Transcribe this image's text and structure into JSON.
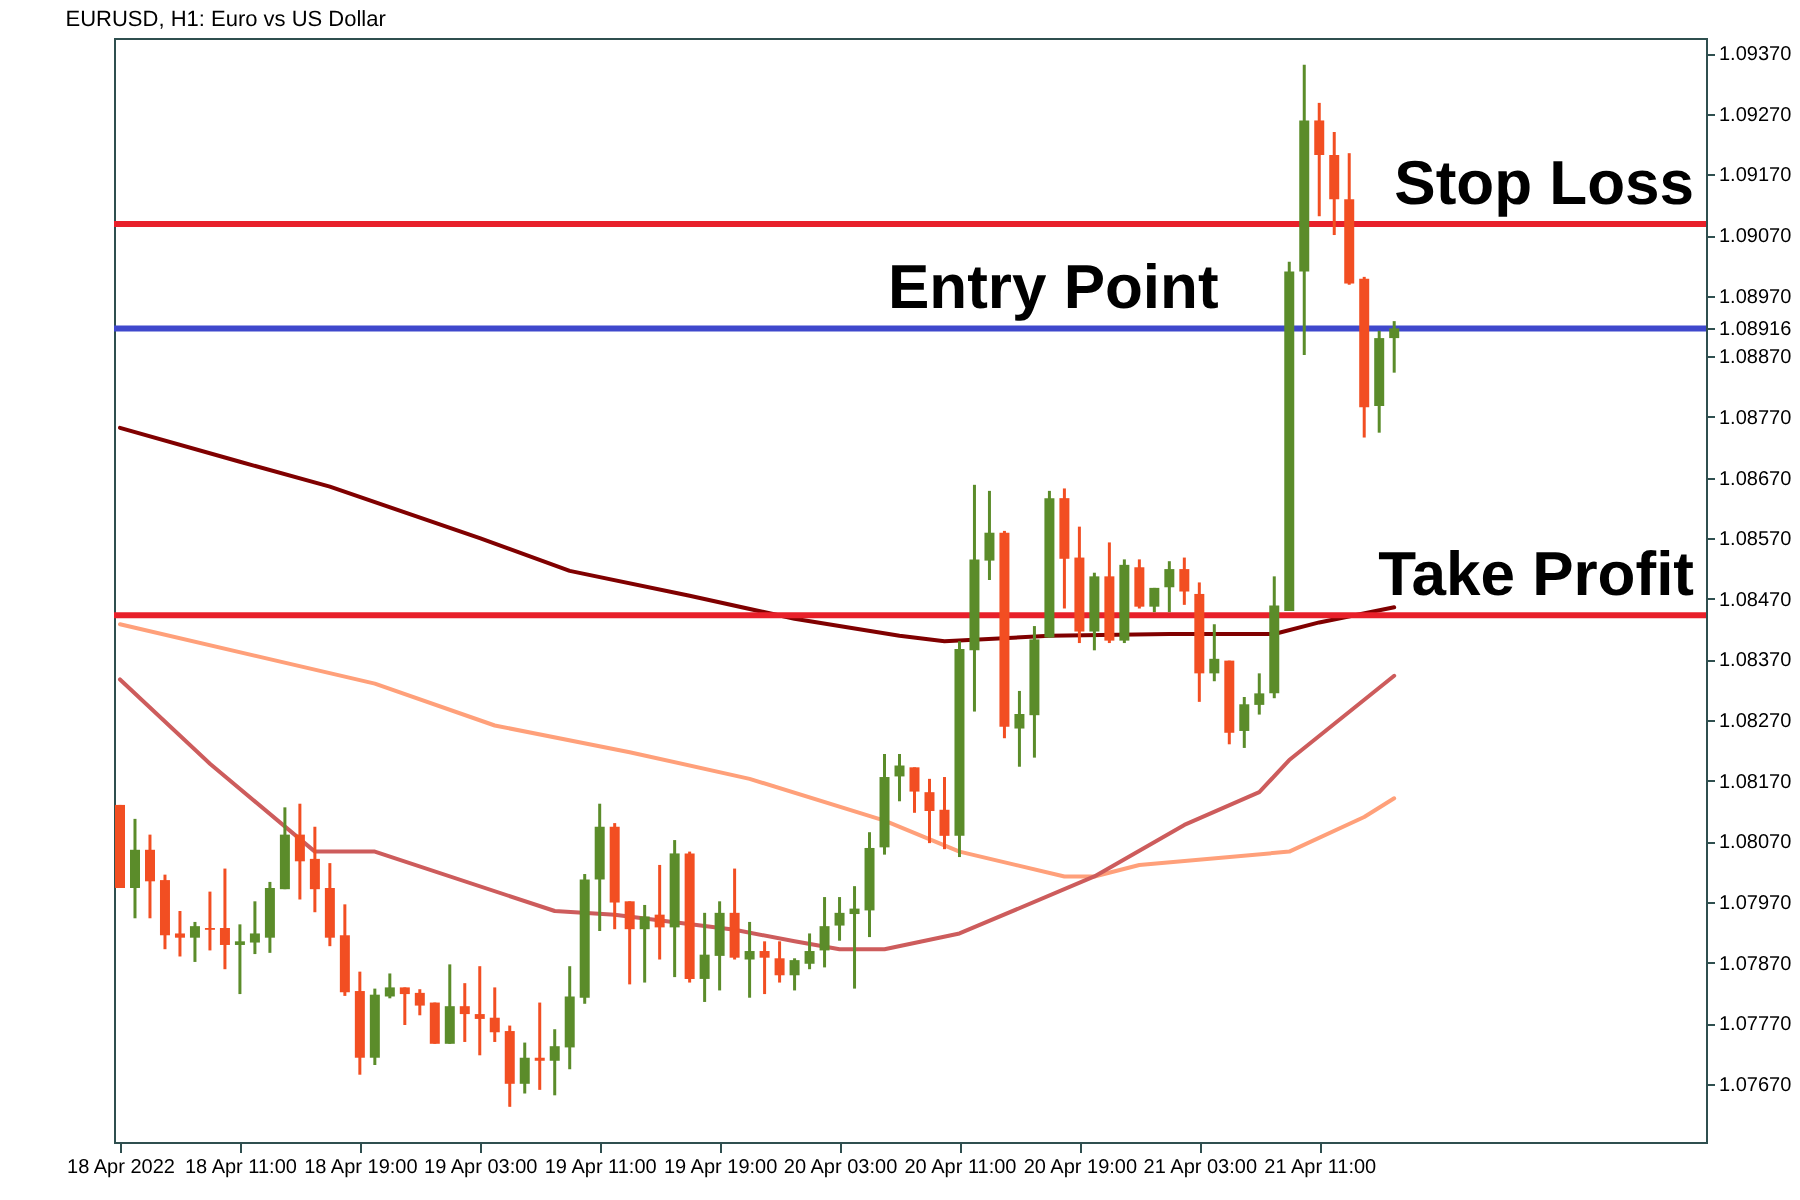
{
  "chart_data": {
    "type": "candlestick",
    "title": "EURUSD, H1:  Euro vs US Dollar",
    "x": [
      "2022-04-18T03:00",
      "2022-04-18T04:00",
      "2022-04-18T05:00",
      "2022-04-18T06:00",
      "2022-04-18T07:00",
      "2022-04-18T08:00",
      "2022-04-18T09:00",
      "2022-04-18T10:00",
      "2022-04-18T11:00",
      "2022-04-18T12:00",
      "2022-04-18T13:00",
      "2022-04-18T14:00",
      "2022-04-18T15:00",
      "2022-04-18T16:00",
      "2022-04-18T17:00",
      "2022-04-18T18:00",
      "2022-04-18T19:00",
      "2022-04-18T20:00",
      "2022-04-18T21:00",
      "2022-04-18T22:00",
      "2022-04-18T23:00",
      "2022-04-19T00:00",
      "2022-04-19T01:00",
      "2022-04-19T02:00",
      "2022-04-19T03:00",
      "2022-04-19T04:00",
      "2022-04-19T05:00",
      "2022-04-19T06:00",
      "2022-04-19T07:00",
      "2022-04-19T08:00",
      "2022-04-19T09:00",
      "2022-04-19T10:00",
      "2022-04-19T11:00",
      "2022-04-19T12:00",
      "2022-04-19T13:00",
      "2022-04-19T14:00",
      "2022-04-19T15:00",
      "2022-04-19T16:00",
      "2022-04-19T17:00",
      "2022-04-19T18:00",
      "2022-04-19T19:00",
      "2022-04-19T20:00",
      "2022-04-19T21:00",
      "2022-04-19T22:00",
      "2022-04-19T23:00",
      "2022-04-20T00:00",
      "2022-04-20T01:00",
      "2022-04-20T02:00",
      "2022-04-20T03:00",
      "2022-04-20T04:00",
      "2022-04-20T05:00",
      "2022-04-20T06:00",
      "2022-04-20T07:00",
      "2022-04-20T08:00",
      "2022-04-20T09:00",
      "2022-04-20T10:00",
      "2022-04-20T11:00",
      "2022-04-20T12:00",
      "2022-04-20T13:00",
      "2022-04-20T14:00",
      "2022-04-20T15:00",
      "2022-04-20T16:00",
      "2022-04-20T17:00",
      "2022-04-20T18:00",
      "2022-04-20T19:00",
      "2022-04-20T20:00",
      "2022-04-20T21:00",
      "2022-04-20T22:00",
      "2022-04-20T23:00",
      "2022-04-21T00:00",
      "2022-04-21T01:00",
      "2022-04-21T02:00",
      "2022-04-21T03:00",
      "2022-04-21T04:00",
      "2022-04-21T05:00",
      "2022-04-21T06:00",
      "2022-04-21T07:00",
      "2022-04-21T08:00",
      "2022-04-21T09:00",
      "2022-04-21T10:00",
      "2022-04-21T11:00",
      "2022-04-21T12:00",
      "2022-04-21T13:00",
      "2022-04-21T14:00",
      "2022-04-21T15:00",
      "2022-04-21T16:00"
    ],
    "ohlc": [
      [
        1.0813,
        1.0813,
        1.07993,
        1.07993
      ],
      [
        1.07993,
        1.08107,
        1.07943,
        1.08056
      ],
      [
        1.08056,
        1.08081,
        1.07943,
        1.08004
      ],
      [
        1.08006,
        1.08015,
        1.07892,
        1.07915
      ],
      [
        1.07918,
        1.07955,
        1.0788,
        1.07911
      ],
      [
        1.07911,
        1.07937,
        1.07871,
        1.0793
      ],
      [
        1.07927,
        1.07987,
        1.0789,
        1.07924
      ],
      [
        1.07927,
        1.08025,
        1.07859,
        1.07899
      ],
      [
        1.07899,
        1.07933,
        1.07818,
        1.07905
      ],
      [
        1.07903,
        1.07971,
        1.07884,
        1.07918
      ],
      [
        1.07911,
        1.08003,
        1.07886,
        1.07993
      ],
      [
        1.07991,
        1.08126,
        1.07991,
        1.08081
      ],
      [
        1.08081,
        1.08132,
        1.07974,
        1.08037
      ],
      [
        1.08041,
        1.08094,
        1.07953,
        1.07991
      ],
      [
        1.07993,
        1.08034,
        1.07897,
        1.07911
      ],
      [
        1.07915,
        1.07966,
        1.07815,
        1.07821
      ],
      [
        1.07823,
        1.07855,
        1.07685,
        1.07713
      ],
      [
        1.07713,
        1.07827,
        1.07701,
        1.07817
      ],
      [
        1.07814,
        1.07852,
        1.07811,
        1.07829
      ],
      [
        1.07829,
        1.07829,
        1.07767,
        1.07818
      ],
      [
        1.0782,
        1.07826,
        1.07783,
        1.07799
      ],
      [
        1.07804,
        1.07804,
        1.07736,
        1.07736
      ],
      [
        1.07736,
        1.07867,
        1.07736,
        1.07798
      ],
      [
        1.07798,
        1.07836,
        1.07739,
        1.07785
      ],
      [
        1.07785,
        1.07864,
        1.07717,
        1.07777
      ],
      [
        1.07779,
        1.07829,
        1.07739,
        1.07755
      ],
      [
        1.07757,
        1.07766,
        1.07632,
        1.0767
      ],
      [
        1.0767,
        1.07738,
        1.07654,
        1.07713
      ],
      [
        1.07713,
        1.07804,
        1.0766,
        1.07708
      ],
      [
        1.07708,
        1.0776,
        1.07651,
        1.07732
      ],
      [
        1.0773,
        1.07864,
        1.07694,
        1.07814
      ],
      [
        1.07812,
        1.08016,
        1.07802,
        1.08007
      ],
      [
        1.08007,
        1.08132,
        1.07922,
        1.08094
      ],
      [
        1.08094,
        1.081,
        1.07925,
        1.07969
      ],
      [
        1.07971,
        1.07971,
        1.07834,
        1.07925
      ],
      [
        1.07925,
        1.07965,
        1.07837,
        1.07946
      ],
      [
        1.07949,
        1.08031,
        1.07875,
        1.07928
      ],
      [
        1.07928,
        1.08072,
        1.07846,
        1.0805
      ],
      [
        1.0805,
        1.08053,
        1.07837,
        1.07843
      ],
      [
        1.07843,
        1.07952,
        1.07805,
        1.07883
      ],
      [
        1.07881,
        1.07971,
        1.07824,
        1.07952
      ],
      [
        1.07952,
        1.08025,
        1.07875,
        1.07878
      ],
      [
        1.07875,
        1.07937,
        1.07812,
        1.07889
      ],
      [
        1.07889,
        1.07905,
        1.07818,
        1.07878
      ],
      [
        1.07877,
        1.07905,
        1.07837,
        1.07849
      ],
      [
        1.07849,
        1.07877,
        1.07824,
        1.07874
      ],
      [
        1.07868,
        1.07918,
        1.07859,
        1.07889
      ],
      [
        1.0789,
        1.07978,
        1.07862,
        1.0793
      ],
      [
        1.07931,
        1.07978,
        1.07906,
        1.07952
      ],
      [
        1.0795,
        1.07996,
        1.07827,
        1.07959
      ],
      [
        1.07956,
        1.08085,
        1.07912,
        1.08059
      ],
      [
        1.0806,
        1.08214,
        1.08048,
        1.08176
      ],
      [
        1.08177,
        1.08214,
        1.08136,
        1.08195
      ],
      [
        1.08192,
        1.08192,
        1.08117,
        1.08152
      ],
      [
        1.08151,
        1.08173,
        1.08067,
        1.0812
      ],
      [
        1.08122,
        1.08176,
        1.08057,
        1.08079
      ],
      [
        1.08079,
        1.084,
        1.08044,
        1.08387
      ],
      [
        1.08385,
        1.08658,
        1.08284,
        1.08535
      ],
      [
        1.08533,
        1.08648,
        1.08501,
        1.08579
      ],
      [
        1.08579,
        1.08582,
        1.0824,
        1.08259
      ],
      [
        1.08256,
        1.08318,
        1.08193,
        1.0828
      ],
      [
        1.08278,
        1.08425,
        1.08208,
        1.08403
      ],
      [
        1.08406,
        1.08648,
        1.08406,
        1.08636
      ],
      [
        1.08636,
        1.08652,
        1.08454,
        1.08536
      ],
      [
        1.08538,
        1.08589,
        1.08397,
        1.08416
      ],
      [
        1.08416,
        1.08513,
        1.08385,
        1.08507
      ],
      [
        1.08507,
        1.08563,
        1.08397,
        1.08401
      ],
      [
        1.08401,
        1.08535,
        1.08397,
        1.08526
      ],
      [
        1.08522,
        1.08535,
        1.08454,
        1.08457
      ],
      [
        1.08457,
        1.08488,
        1.08448,
        1.08488
      ],
      [
        1.08489,
        1.08532,
        1.08448,
        1.08519
      ],
      [
        1.08519,
        1.08538,
        1.0846,
        1.08482
      ],
      [
        1.08478,
        1.08497,
        1.083,
        1.08347
      ],
      [
        1.08347,
        1.08428,
        1.08334,
        1.08371
      ],
      [
        1.08368,
        1.08368,
        1.0823,
        1.08249
      ],
      [
        1.08252,
        1.08308,
        1.08224,
        1.08296
      ],
      [
        1.08295,
        1.08347,
        1.08279,
        1.08314
      ],
      [
        1.08314,
        1.08507,
        1.08306,
        1.08459
      ],
      [
        1.0845,
        1.09026,
        1.0845,
        1.0901
      ],
      [
        1.0901,
        1.09351,
        1.08872,
        1.09259
      ],
      [
        1.09259,
        1.09288,
        1.09101,
        1.09202
      ],
      [
        1.09202,
        1.0924,
        1.0907,
        1.09129
      ],
      [
        1.09129,
        1.09205,
        1.08988,
        1.0899
      ],
      [
        1.08998,
        1.09001,
        1.08736,
        1.08786
      ],
      [
        1.08788,
        1.08912,
        1.08744,
        1.089
      ],
      [
        1.089,
        1.08928,
        1.08843,
        1.08916
      ]
    ],
    "colors": [
      "#f24e22",
      "#5b8c2a",
      "#f24e22",
      "#f24e22",
      "#f24e22",
      "#5b8c2a",
      "#f24e22",
      "#f24e22",
      "#5b8c2a",
      "#5b8c2a",
      "#5b8c2a",
      "#5b8c2a",
      "#f24e22",
      "#f24e22",
      "#f24e22",
      "#f24e22",
      "#f24e22",
      "#5b8c2a",
      "#5b8c2a",
      "#f24e22",
      "#f24e22",
      "#f24e22",
      "#5b8c2a",
      "#f24e22",
      "#f24e22",
      "#f24e22",
      "#f24e22",
      "#5b8c2a",
      "#f24e22",
      "#5b8c2a",
      "#5b8c2a",
      "#5b8c2a",
      "#5b8c2a",
      "#f24e22",
      "#f24e22",
      "#5b8c2a",
      "#f24e22",
      "#5b8c2a",
      "#f24e22",
      "#5b8c2a",
      "#5b8c2a",
      "#f24e22",
      "#5b8c2a",
      "#f24e22",
      "#f24e22",
      "#5b8c2a",
      "#5b8c2a",
      "#5b8c2a",
      "#5b8c2a",
      "#5b8c2a",
      "#5b8c2a",
      "#5b8c2a",
      "#5b8c2a",
      "#f24e22",
      "#f24e22",
      "#f24e22",
      "#5b8c2a",
      "#5b8c2a",
      "#5b8c2a",
      "#f24e22",
      "#5b8c2a",
      "#5b8c2a",
      "#5b8c2a",
      "#f24e22",
      "#f24e22",
      "#5b8c2a",
      "#f24e22",
      "#5b8c2a",
      "#f24e22",
      "#5b8c2a",
      "#5b8c2a",
      "#f24e22",
      "#f24e22",
      "#5b8c2a",
      "#f24e22",
      "#5b8c2a",
      "#5b8c2a",
      "#5b8c2a",
      "#5b8c2a",
      "#5b8c2a",
      "#f24e22",
      "#f24e22",
      "#f24e22",
      "#f24e22",
      "#5b8c2a",
      "#5b8c2a"
    ],
    "series": [
      {
        "type": "line",
        "color": "#800000",
        "x": [
          "2022-04-18T03:00",
          "2022-04-18T11:00",
          "2022-04-18T17:00",
          "2022-04-19T03:00",
          "2022-04-19T09:00",
          "2022-04-19T17:00",
          "2022-04-20T00:00",
          "2022-04-20T07:00",
          "2022-04-20T10:00",
          "2022-04-20T17:00",
          "2022-04-21T01:00",
          "2022-04-21T08:00",
          "2022-04-21T11:00",
          "2022-04-21T16:00"
        ],
        "values": [
          1.08752,
          1.08696,
          1.08655,
          1.0857,
          1.08516,
          1.08475,
          1.08437,
          1.08409,
          1.084,
          1.08409,
          1.08412,
          1.08412,
          1.08431,
          1.08456
        ]
      },
      {
        "type": "line",
        "color": "#ffa07a",
        "x": [
          "2022-04-18T03:00",
          "2022-04-18T20:00",
          "2022-04-19T04:00",
          "2022-04-19T13:00",
          "2022-04-19T21:00",
          "2022-04-20T06:00",
          "2022-04-20T11:00",
          "2022-04-20T18:00",
          "2022-04-20T20:00",
          "2022-04-20T23:00",
          "2022-04-21T09:00",
          "2022-04-21T14:00",
          "2022-04-21T16:00"
        ],
        "values": [
          1.08428,
          1.0833,
          1.08261,
          1.08217,
          1.08173,
          1.08104,
          1.08053,
          1.08012,
          1.08012,
          1.08031,
          1.08053,
          1.0811,
          1.08141
        ]
      },
      {
        "type": "line",
        "color": "#cd5c5c",
        "x": [
          "2022-04-18T03:00",
          "2022-04-18T09:00",
          "2022-04-18T16:00",
          "2022-04-18T20:00",
          "2022-04-19T08:00",
          "2022-04-19T12:00",
          "2022-04-19T20:00",
          "2022-04-20T00:00",
          "2022-04-20T03:00",
          "2022-04-20T06:00",
          "2022-04-20T11:00",
          "2022-04-20T20:00",
          "2022-04-21T02:00",
          "2022-04-21T07:00",
          "2022-04-21T09:00",
          "2022-04-21T16:00"
        ],
        "values": [
          1.08337,
          1.08198,
          1.08053,
          1.08053,
          1.07955,
          1.07949,
          1.07924,
          1.07905,
          1.07892,
          1.07892,
          1.07918,
          1.08012,
          1.08097,
          1.08151,
          1.08204,
          1.08343
        ]
      }
    ],
    "ref_lines": [
      {
        "axis": "y",
        "value": 1.09088,
        "label": "Stop Loss",
        "color": "#e8202a"
      },
      {
        "axis": "y",
        "value": 1.08916,
        "label": "Entry Point",
        "color": "#3f48cc"
      },
      {
        "axis": "y",
        "value": 1.08443,
        "label": "Take Profit",
        "color": "#e8202a"
      }
    ],
    "xlim": [
      "2022-04-18T02:36",
      "2022-04-22T12:48"
    ],
    "xticks": [
      {
        "value": "2022-04-18T03:00",
        "label": "18 Apr 2022"
      },
      {
        "value": "2022-04-18T11:00",
        "label": "18 Apr 11:00"
      },
      {
        "value": "2022-04-18T19:00",
        "label": "18 Apr 19:00"
      },
      {
        "value": "2022-04-19T03:00",
        "label": "19 Apr 03:00"
      },
      {
        "value": "2022-04-19T11:00",
        "label": "19 Apr 11:00"
      },
      {
        "value": "2022-04-19T19:00",
        "label": "19 Apr 19:00"
      },
      {
        "value": "2022-04-20T03:00",
        "label": "20 Apr 03:00"
      },
      {
        "value": "2022-04-20T11:00",
        "label": "20 Apr 11:00"
      },
      {
        "value": "2022-04-20T19:00",
        "label": "20 Apr 19:00"
      },
      {
        "value": "2022-04-21T03:00",
        "label": "21 Apr 03:00"
      },
      {
        "value": "2022-04-21T11:00",
        "label": "21 Apr 11:00"
      }
    ],
    "ylim": [
      1.07574,
      1.09395
    ],
    "yticks": [
      {
        "value": 1.0767,
        "label": "1.07670"
      },
      {
        "value": 1.0777,
        "label": "1.07770"
      },
      {
        "value": 1.0787,
        "label": "1.07870"
      },
      {
        "value": 1.0797,
        "label": "1.07970"
      },
      {
        "value": 1.0807,
        "label": "1.08070"
      },
      {
        "value": 1.0817,
        "label": "1.08170"
      },
      {
        "value": 1.0827,
        "label": "1.08270"
      },
      {
        "value": 1.0837,
        "label": "1.08370"
      },
      {
        "value": 1.0847,
        "label": "1.08470"
      },
      {
        "value": 1.0857,
        "label": "1.08570"
      },
      {
        "value": 1.0867,
        "label": "1.08670"
      },
      {
        "value": 1.0877,
        "label": "1.08770"
      },
      {
        "value": 1.0887,
        "label": "1.08870"
      },
      {
        "value": 1.08916,
        "label": "1.08916"
      },
      {
        "value": 1.0897,
        "label": "1.08970"
      },
      {
        "value": 1.0907,
        "label": "1.09070"
      },
      {
        "value": 1.0917,
        "label": "1.09170"
      },
      {
        "value": 1.0927,
        "label": "1.09270"
      },
      {
        "value": 1.0937,
        "label": "1.09370"
      }
    ],
    "grid": false,
    "marker": "none",
    "line_style": "solid"
  }
}
